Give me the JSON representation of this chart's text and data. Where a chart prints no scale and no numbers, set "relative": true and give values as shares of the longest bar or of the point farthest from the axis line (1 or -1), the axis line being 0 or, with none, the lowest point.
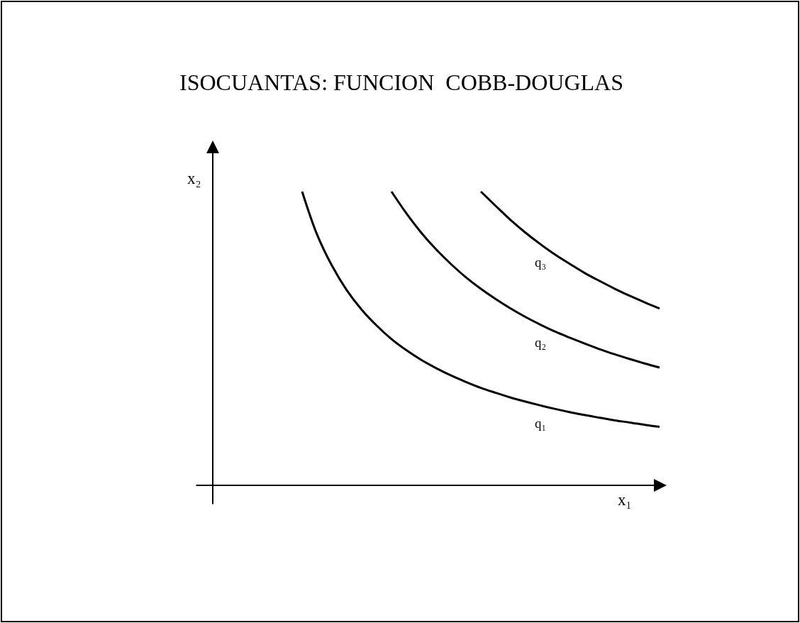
{
  "chart_data": {
    "type": "line",
    "title": "ISOCUANTAS: FUNCION  COBB-DOUGLAS",
    "xlabel": "x₁",
    "ylabel": "x₂",
    "relative": true,
    "categories": [
      null,
      null,
      null,
      null,
      null,
      null,
      null,
      null,
      null,
      null,
      null,
      null,
      null,
      null,
      null,
      null,
      null,
      null,
      null,
      null,
      null,
      null,
      null,
      null,
      null,
      null,
      null,
      null,
      null,
      null,
      null
    ],
    "series": [
      {
        "name": "q₁",
        "color": "#000000",
        "values": [
          null,
          null,
          null,
          null,
          null,
          null,
          1.0,
          0.854,
          0.748,
          0.664,
          0.598,
          0.544,
          0.498,
          0.46,
          0.427,
          0.399,
          0.374,
          0.352,
          0.332,
          0.315,
          0.299,
          0.285,
          0.272,
          0.26,
          0.249,
          0.239,
          0.23,
          0.221,
          0.214,
          0.206,
          0.199
        ]
      },
      {
        "name": "q₂",
        "color": "#000000",
        "values": [
          null,
          null,
          null,
          null,
          null,
          null,
          null,
          null,
          null,
          null,
          null,
          null,
          1.0,
          0.926,
          0.86,
          0.803,
          0.753,
          0.708,
          0.669,
          0.634,
          0.602,
          0.573,
          0.547,
          0.523,
          0.502,
          0.482,
          0.463,
          0.446,
          0.43,
          0.415,
          0.401
        ]
      },
      {
        "name": "q₃",
        "color": "#000000",
        "values": [
          null,
          null,
          null,
          null,
          null,
          null,
          null,
          null,
          null,
          null,
          null,
          null,
          null,
          null,
          null,
          null,
          null,
          null,
          1.0,
          0.951,
          0.903,
          0.86,
          0.821,
          0.785,
          0.753,
          0.722,
          0.695,
          0.669,
          0.645,
          0.623,
          0.602
        ]
      }
    ]
  }
}
